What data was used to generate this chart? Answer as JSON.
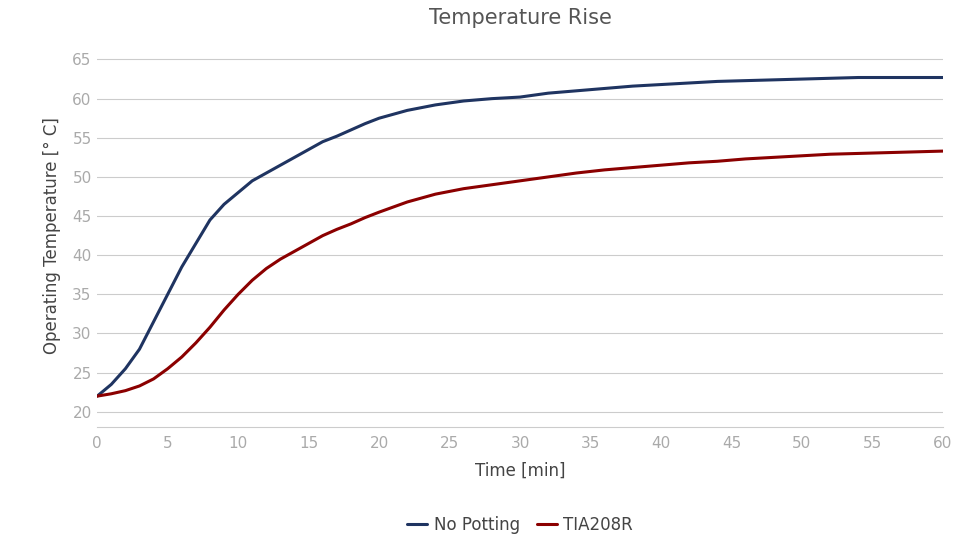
{
  "title": "Temperature Rise",
  "xlabel": "Time [min]",
  "ylabel": "Operating Temperature [° C]",
  "xlim": [
    0,
    60
  ],
  "ylim": [
    18,
    67
  ],
  "xticks": [
    0,
    5,
    10,
    15,
    20,
    25,
    30,
    35,
    40,
    45,
    50,
    55,
    60
  ],
  "yticks": [
    20,
    25,
    30,
    35,
    40,
    45,
    50,
    55,
    60,
    65
  ],
  "no_potting_x": [
    0,
    1,
    2,
    3,
    4,
    5,
    6,
    7,
    8,
    9,
    10,
    11,
    12,
    13,
    14,
    15,
    16,
    17,
    18,
    19,
    20,
    22,
    24,
    26,
    28,
    30,
    32,
    34,
    36,
    38,
    40,
    42,
    44,
    46,
    48,
    50,
    52,
    54,
    56,
    58,
    60
  ],
  "no_potting_y": [
    22.0,
    23.5,
    25.5,
    28.0,
    31.5,
    35.0,
    38.5,
    41.5,
    44.5,
    46.5,
    48.0,
    49.5,
    50.5,
    51.5,
    52.5,
    53.5,
    54.5,
    55.2,
    56.0,
    56.8,
    57.5,
    58.5,
    59.2,
    59.7,
    60.0,
    60.2,
    60.7,
    61.0,
    61.3,
    61.6,
    61.8,
    62.0,
    62.2,
    62.3,
    62.4,
    62.5,
    62.6,
    62.7,
    62.7,
    62.7,
    62.7
  ],
  "tia208r_x": [
    0,
    1,
    2,
    3,
    4,
    5,
    6,
    7,
    8,
    9,
    10,
    11,
    12,
    13,
    14,
    15,
    16,
    17,
    18,
    19,
    20,
    22,
    24,
    26,
    28,
    30,
    32,
    34,
    36,
    38,
    40,
    42,
    44,
    46,
    48,
    50,
    52,
    54,
    56,
    58,
    60
  ],
  "tia208r_y": [
    22.0,
    22.3,
    22.7,
    23.3,
    24.2,
    25.5,
    27.0,
    28.8,
    30.8,
    33.0,
    35.0,
    36.8,
    38.3,
    39.5,
    40.5,
    41.5,
    42.5,
    43.3,
    44.0,
    44.8,
    45.5,
    46.8,
    47.8,
    48.5,
    49.0,
    49.5,
    50.0,
    50.5,
    50.9,
    51.2,
    51.5,
    51.8,
    52.0,
    52.3,
    52.5,
    52.7,
    52.9,
    53.0,
    53.1,
    53.2,
    53.3
  ],
  "no_potting_color": "#1F3461",
  "tia208r_color": "#8B0000",
  "line_width": 2.2,
  "title_fontsize": 15,
  "label_fontsize": 12,
  "tick_fontsize": 11,
  "legend_fontsize": 12,
  "grid_color": "#cccccc",
  "bg_color": "#ffffff",
  "tick_color": "#aaaaaa",
  "title_color": "#555555",
  "label_color": "#444444"
}
